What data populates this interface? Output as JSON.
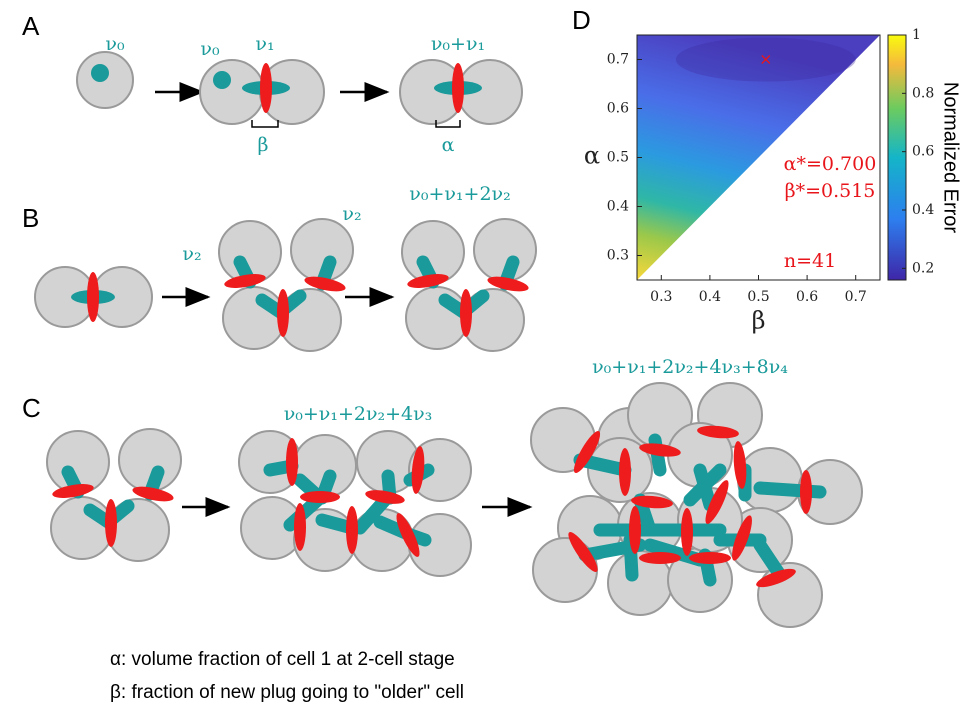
{
  "panel_a": {
    "label": "A",
    "annotations": [
      "ν₀",
      "ν₀",
      "ν₁",
      "ν₀+ν₁",
      "β",
      "α"
    ]
  },
  "panel_b": {
    "label": "B",
    "annotations": [
      "ν₂",
      "ν₂",
      "ν₀+ν₁+2ν₂"
    ]
  },
  "panel_c": {
    "label": "C",
    "annotations": [
      "ν₀+ν₁+2ν₂+4ν₃",
      "ν₀+ν₁+2ν₂+4ν₃+8ν₄"
    ]
  },
  "chart_data": {
    "type": "heatmap",
    "panel_label": "D",
    "xlabel": "β",
    "ylabel": "α",
    "xlim": [
      0.25,
      0.75
    ],
    "ylim": [
      0.25,
      0.75
    ],
    "xticks": [
      0.3,
      0.4,
      0.5,
      0.6,
      0.7
    ],
    "yticks": [
      0.3,
      0.4,
      0.5,
      0.6,
      0.7
    ],
    "colorbar": {
      "label": "Normalized Error",
      "lim": [
        0.16,
        1
      ],
      "ticks": [
        0.2,
        0.4,
        0.6,
        0.8,
        1
      ]
    },
    "optimum": {
      "x": 0.515,
      "y": 0.7,
      "color": "#e8151b"
    },
    "annotations": [
      "α*=0.700",
      "β*=0.515",
      "n=41"
    ]
  },
  "legend": [
    "α: volume fraction of cell 1 at 2-cell stage",
    "β: fraction of new plug going to \"older\" cell"
  ]
}
